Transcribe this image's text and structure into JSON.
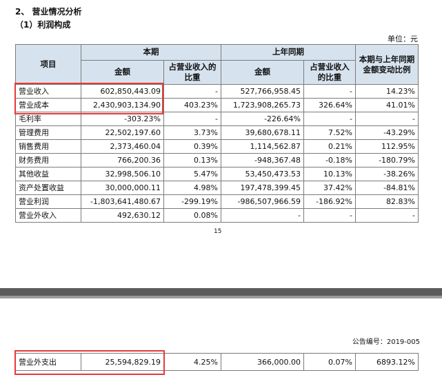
{
  "header": {
    "section_title": "2、 营业情况分析",
    "subsection_title": "（1）利润构成",
    "unit": "单位：元"
  },
  "table": {
    "headers": {
      "item": "项目",
      "current_period": "本期",
      "prior_period": "上年同期",
      "change": "本期与上年同期金额变动比例",
      "amount": "金额",
      "ratio": "占营业收入的比重"
    },
    "rows": [
      {
        "item": "营业收入",
        "cur_amount": "602,850,443.09",
        "cur_ratio": "-",
        "prev_amount": "527,766,958.45",
        "prev_ratio": "-",
        "change": "14.23%"
      },
      {
        "item": "营业成本",
        "cur_amount": "2,430,903,134.90",
        "cur_ratio": "403.23%",
        "prev_amount": "1,723,908,265.73",
        "prev_ratio": "326.64%",
        "change": "41.01%"
      },
      {
        "item": "毛利率",
        "cur_amount": "-303.23%",
        "cur_ratio": "-",
        "prev_amount": "-226.64%",
        "prev_ratio": "-",
        "change": "-"
      },
      {
        "item": "管理费用",
        "cur_amount": "22,502,197.60",
        "cur_ratio": "3.73%",
        "prev_amount": "39,680,678.11",
        "prev_ratio": "7.52%",
        "change": "-43.29%"
      },
      {
        "item": "销售费用",
        "cur_amount": "2,373,460.04",
        "cur_ratio": "0.39%",
        "prev_amount": "1,114,562.87",
        "prev_ratio": "0.21%",
        "change": "112.95%"
      },
      {
        "item": "财务费用",
        "cur_amount": "766,200.36",
        "cur_ratio": "0.13%",
        "prev_amount": "-948,367.48",
        "prev_ratio": "-0.18%",
        "change": "-180.79%"
      },
      {
        "item": "其他收益",
        "cur_amount": "32,998,506.10",
        "cur_ratio": "5.47%",
        "prev_amount": "53,450,473.53",
        "prev_ratio": "10.13%",
        "change": "-38.26%"
      },
      {
        "item": "资产处置收益",
        "cur_amount": "30,000,000.11",
        "cur_ratio": "4.98%",
        "prev_amount": "197,478,399.45",
        "prev_ratio": "37.42%",
        "change": "-84.81%"
      },
      {
        "item": "营业利润",
        "cur_amount": "-1,803,641,480.67",
        "cur_ratio": "-299.19%",
        "prev_amount": "-986,507,966.59",
        "prev_ratio": "-186.92%",
        "change": "82.83%"
      },
      {
        "item": "营业外收入",
        "cur_amount": "492,630.12",
        "cur_ratio": "0.08%",
        "prev_amount": "-",
        "prev_ratio": "-",
        "change": "-"
      }
    ]
  },
  "page_number": "15",
  "next_page": {
    "notice_number": "公告编号：2019-005",
    "row": {
      "item": "营业外支出",
      "cur_amount": "25,594,829.19",
      "cur_ratio": "4.25%",
      "prev_amount": "366,000.00",
      "prev_ratio": "0.07%",
      "change": "6893.12%"
    }
  },
  "colors": {
    "header_bg": "#d6e3ef",
    "highlight_box": "#e53935",
    "page_separator": "#5b5b5b"
  }
}
